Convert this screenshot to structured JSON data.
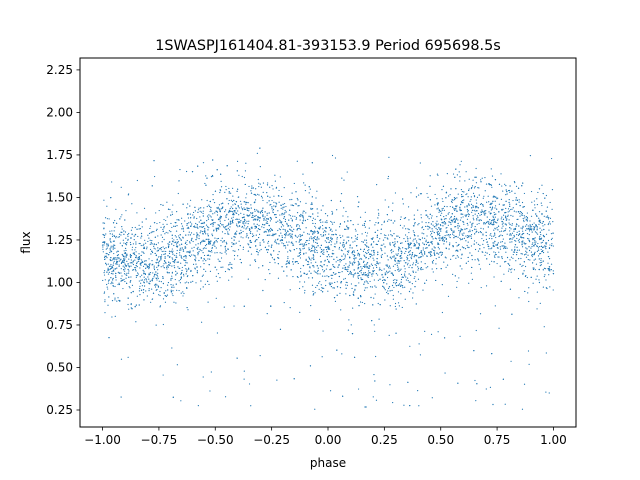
{
  "chart_data": {
    "type": "scatter",
    "title": "1SWASPJ161404.81-393153.9 Period 695698.5s",
    "xlabel": "phase",
    "ylabel": "flux",
    "xlim": [
      -1.1,
      1.1
    ],
    "ylim": [
      0.15,
      2.32
    ],
    "x_ticks": [
      {
        "value": -1.0,
        "label": "−1.00"
      },
      {
        "value": -0.75,
        "label": "−0.75"
      },
      {
        "value": -0.5,
        "label": "−0.50"
      },
      {
        "value": -0.25,
        "label": "−0.25"
      },
      {
        "value": 0.0,
        "label": "0.00"
      },
      {
        "value": 0.25,
        "label": "0.25"
      },
      {
        "value": 0.5,
        "label": "0.50"
      },
      {
        "value": 0.75,
        "label": "0.75"
      },
      {
        "value": 1.0,
        "label": "1.00"
      }
    ],
    "y_ticks": [
      {
        "value": 0.25,
        "label": "0.25"
      },
      {
        "value": 0.5,
        "label": "0.50"
      },
      {
        "value": 0.75,
        "label": "0.75"
      },
      {
        "value": 1.0,
        "label": "1.00"
      },
      {
        "value": 1.25,
        "label": "1.25"
      },
      {
        "value": 1.5,
        "label": "1.50"
      },
      {
        "value": 1.75,
        "label": "1.75"
      },
      {
        "value": 2.0,
        "label": "2.00"
      },
      {
        "value": 2.25,
        "label": "2.25"
      }
    ],
    "grid": false,
    "marker_color": "#1f77b4",
    "point_size": 0.6,
    "phase_profile": [
      {
        "x": -1.0,
        "flux": 1.12
      },
      {
        "x": -0.9,
        "flux": 1.14
      },
      {
        "x": -0.8,
        "flux": 1.12
      },
      {
        "x": -0.7,
        "flux": 1.14
      },
      {
        "x": -0.6,
        "flux": 1.22
      },
      {
        "x": -0.5,
        "flux": 1.3
      },
      {
        "x": -0.4,
        "flux": 1.36
      },
      {
        "x": -0.3,
        "flux": 1.36
      },
      {
        "x": -0.2,
        "flux": 1.31
      },
      {
        "x": -0.1,
        "flux": 1.25
      },
      {
        "x": 0.0,
        "flux": 1.18
      },
      {
        "x": 0.1,
        "flux": 1.12
      },
      {
        "x": 0.2,
        "flux": 1.12
      },
      {
        "x": 0.3,
        "flux": 1.14
      },
      {
        "x": 0.4,
        "flux": 1.22
      },
      {
        "x": 0.5,
        "flux": 1.3
      },
      {
        "x": 0.6,
        "flux": 1.36
      },
      {
        "x": 0.7,
        "flux": 1.36
      },
      {
        "x": 0.8,
        "flux": 1.31
      },
      {
        "x": 0.9,
        "flux": 1.25
      },
      {
        "x": 1.0,
        "flux": 1.18
      }
    ],
    "scatter_sigma": 0.13,
    "outlier_range": [
      0.25,
      2.25
    ]
  }
}
